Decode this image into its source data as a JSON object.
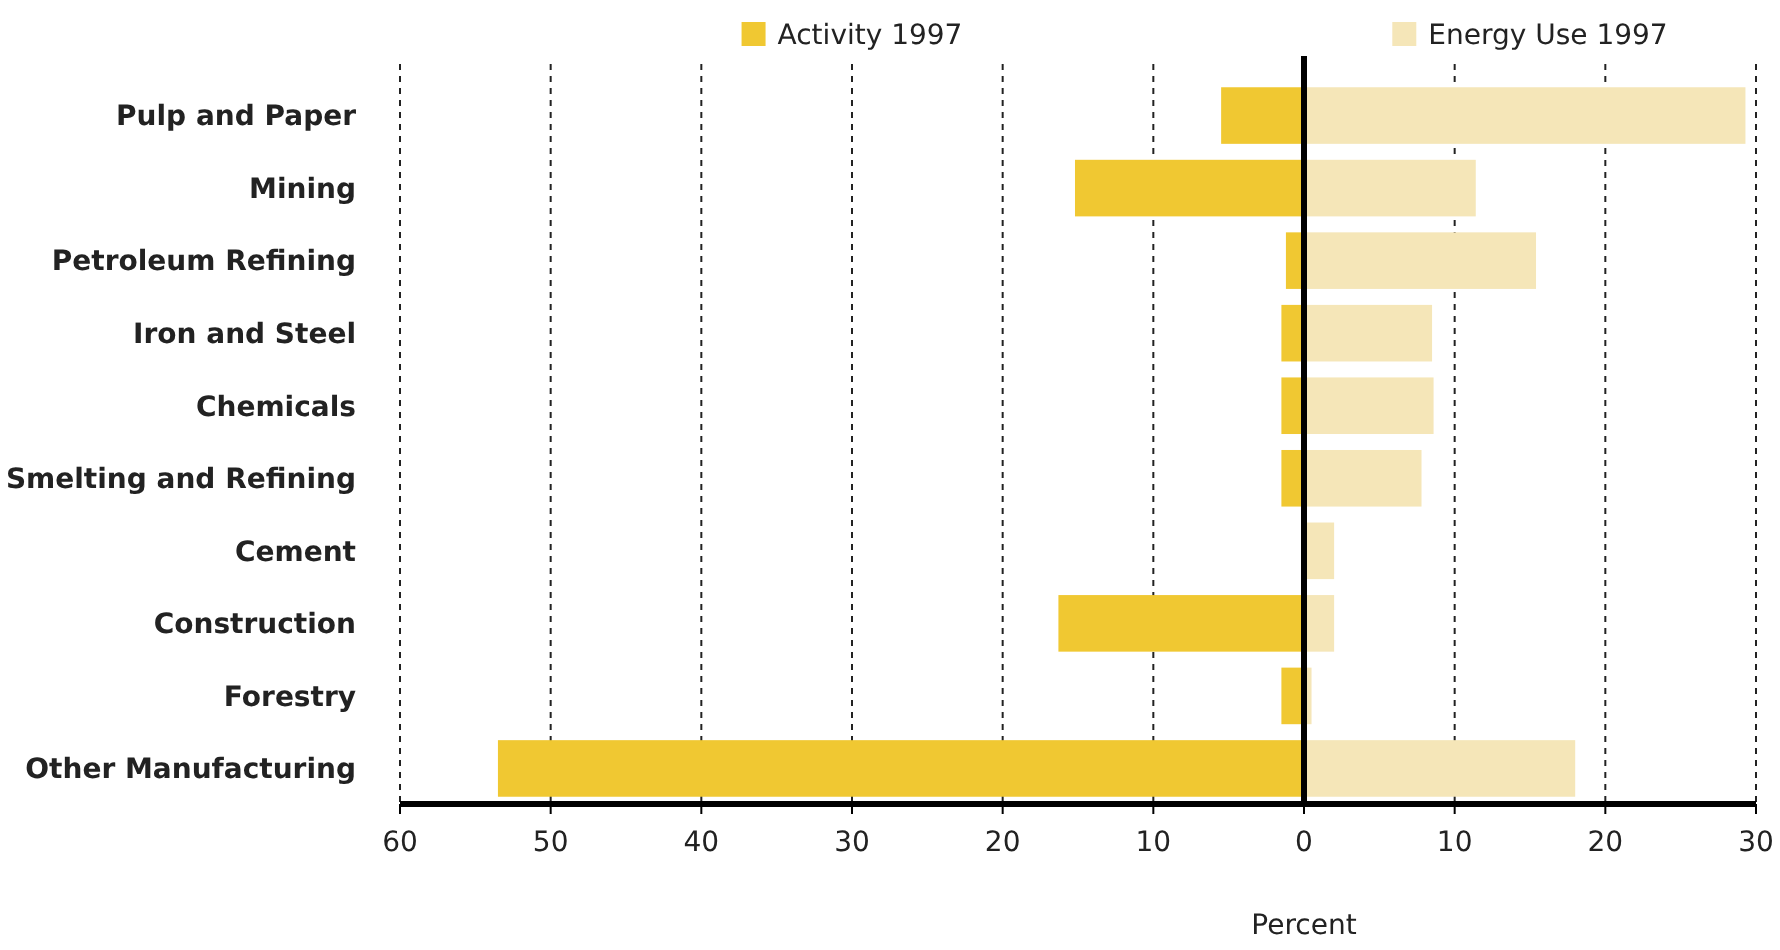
{
  "chart_data": {
    "type": "bar",
    "orientation": "horizontal",
    "stacked": true,
    "xlabel": "Percent",
    "categories": [
      "Pulp and Paper",
      "Mining",
      "Petroleum Refining",
      "Iron and Steel",
      "Chemicals",
      "Smelting and Refining",
      "Cement",
      "Construction",
      "Forestry",
      "Other Manufacturing"
    ],
    "series": [
      {
        "name": "Activity 1997",
        "color": "#f0c832",
        "values": [
          -5.5,
          -15.2,
          -1.2,
          -1.5,
          -1.5,
          -1.5,
          0,
          -16.3,
          -1.5,
          -53.5
        ]
      },
      {
        "name": "Energy Use 1997",
        "color": "#f5e6b8",
        "values": [
          29.3,
          11.4,
          15.4,
          8.5,
          8.6,
          7.8,
          2,
          2,
          0.5,
          18
        ]
      }
    ],
    "xlim": [
      -60,
      30
    ],
    "xticks": [
      {
        "value": -60,
        "label": "60"
      },
      {
        "value": -50,
        "label": "50"
      },
      {
        "value": -40,
        "label": "40"
      },
      {
        "value": -30,
        "label": "30"
      },
      {
        "value": -20,
        "label": "20"
      },
      {
        "value": -10,
        "label": "10"
      },
      0,
      10,
      20,
      30
    ],
    "grid": "x",
    "legend": "top"
  }
}
